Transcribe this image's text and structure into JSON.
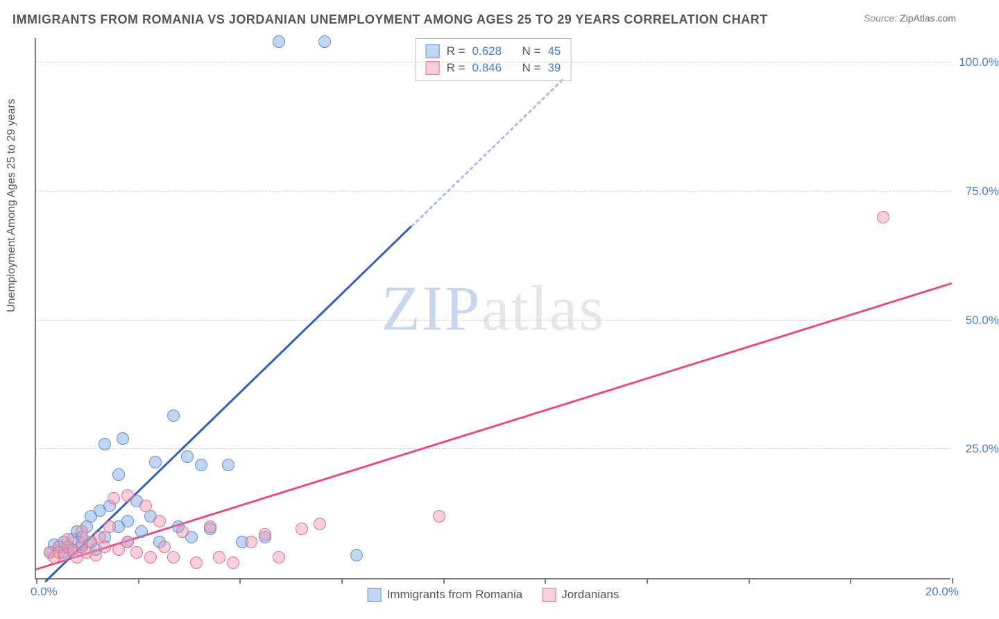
{
  "title": "IMMIGRANTS FROM ROMANIA VS JORDANIAN UNEMPLOYMENT AMONG AGES 25 TO 29 YEARS CORRELATION CHART",
  "source": {
    "label": "Source:",
    "name": "ZipAtlas.com"
  },
  "watermark": {
    "zip": "ZIP",
    "atlas": "atlas"
  },
  "y_axis_label": "Unemployment Among Ages 25 to 29 years",
  "chart": {
    "type": "scatter",
    "background_color": "#ffffff",
    "grid_color": "#d0d0d0",
    "axis_color": "#7a7a7a",
    "xlim": [
      0,
      20
    ],
    "ylim": [
      0,
      105
    ],
    "x_ticks": [
      0,
      2.22,
      4.44,
      6.67,
      8.89,
      11.11,
      13.33,
      15.56,
      17.78,
      20
    ],
    "y_ticks": [
      25,
      50,
      75,
      100
    ],
    "y_tick_labels": [
      "25.0%",
      "50.0%",
      "75.0%",
      "100.0%"
    ],
    "origin_label": "0.0%",
    "x_end_label": "20.0%",
    "tick_label_color": "#4a7bd0",
    "tick_label_fontsize": 17,
    "series": [
      {
        "id": "romania",
        "label": "Immigrants from Romania",
        "fill": "rgba(120,165,225,0.45)",
        "stroke": "#5f8fd6",
        "marker_radius": 9,
        "trend": {
          "x1": 0.2,
          "y1": -1,
          "x2": 8.2,
          "y2": 68,
          "extend_to_x": 11.5,
          "color_solid": "#2f5fc0",
          "color_dash": "#a9bfe6",
          "width": 3
        },
        "R": "0.628",
        "N": "45",
        "points": [
          [
            0.3,
            5
          ],
          [
            0.4,
            6.5
          ],
          [
            0.5,
            6
          ],
          [
            0.6,
            5
          ],
          [
            0.6,
            7
          ],
          [
            0.8,
            5.5
          ],
          [
            0.8,
            7.5
          ],
          [
            0.9,
            9
          ],
          [
            1.0,
            6
          ],
          [
            1.0,
            8
          ],
          [
            1.1,
            10
          ],
          [
            1.2,
            7
          ],
          [
            1.2,
            12
          ],
          [
            1.3,
            5.5
          ],
          [
            1.4,
            13
          ],
          [
            1.5,
            8
          ],
          [
            1.5,
            26
          ],
          [
            1.6,
            14
          ],
          [
            1.8,
            10
          ],
          [
            1.8,
            20
          ],
          [
            1.9,
            27
          ],
          [
            2.0,
            11
          ],
          [
            2.0,
            7
          ],
          [
            2.2,
            15
          ],
          [
            2.3,
            9
          ],
          [
            2.5,
            12
          ],
          [
            2.6,
            22.5
          ],
          [
            2.7,
            7
          ],
          [
            3.0,
            31.5
          ],
          [
            3.1,
            10
          ],
          [
            3.3,
            23.5
          ],
          [
            3.4,
            8
          ],
          [
            3.6,
            22
          ],
          [
            3.8,
            9.5
          ],
          [
            4.2,
            22
          ],
          [
            4.5,
            7
          ],
          [
            5.0,
            8
          ],
          [
            5.3,
            104
          ],
          [
            6.3,
            104
          ],
          [
            7.0,
            4.5
          ]
        ]
      },
      {
        "id": "jordanians",
        "label": "Jordanians",
        "fill": "rgba(235,150,175,0.45)",
        "stroke": "#e06f93",
        "marker_radius": 9,
        "trend": {
          "x1": 0,
          "y1": 1.5,
          "x2": 20,
          "y2": 57,
          "color_solid": "#e84c7d",
          "width": 3
        },
        "R": "0.846",
        "N": "39",
        "points": [
          [
            0.3,
            5
          ],
          [
            0.4,
            4
          ],
          [
            0.5,
            6
          ],
          [
            0.5,
            5
          ],
          [
            0.6,
            4.5
          ],
          [
            0.7,
            6
          ],
          [
            0.7,
            7.5
          ],
          [
            0.8,
            5
          ],
          [
            0.9,
            4
          ],
          [
            1.0,
            6.5
          ],
          [
            1.0,
            9
          ],
          [
            1.1,
            5
          ],
          [
            1.2,
            7
          ],
          [
            1.3,
            4.5
          ],
          [
            1.4,
            8
          ],
          [
            1.5,
            6
          ],
          [
            1.6,
            10
          ],
          [
            1.7,
            15.5
          ],
          [
            1.8,
            5.5
          ],
          [
            2.0,
            7
          ],
          [
            2.0,
            16
          ],
          [
            2.2,
            5
          ],
          [
            2.4,
            14
          ],
          [
            2.5,
            4
          ],
          [
            2.7,
            11
          ],
          [
            2.8,
            6
          ],
          [
            3.0,
            4
          ],
          [
            3.2,
            9
          ],
          [
            3.5,
            3
          ],
          [
            3.8,
            10
          ],
          [
            4.0,
            4
          ],
          [
            4.3,
            3
          ],
          [
            4.7,
            7
          ],
          [
            5.0,
            8.5
          ],
          [
            5.3,
            4
          ],
          [
            5.8,
            9.5
          ],
          [
            6.2,
            10.5
          ],
          [
            8.8,
            12
          ],
          [
            18.5,
            70
          ]
        ]
      }
    ]
  },
  "legend_top": {
    "r_prefix": "R =",
    "n_prefix": "N ="
  },
  "legend_bottom": {}
}
